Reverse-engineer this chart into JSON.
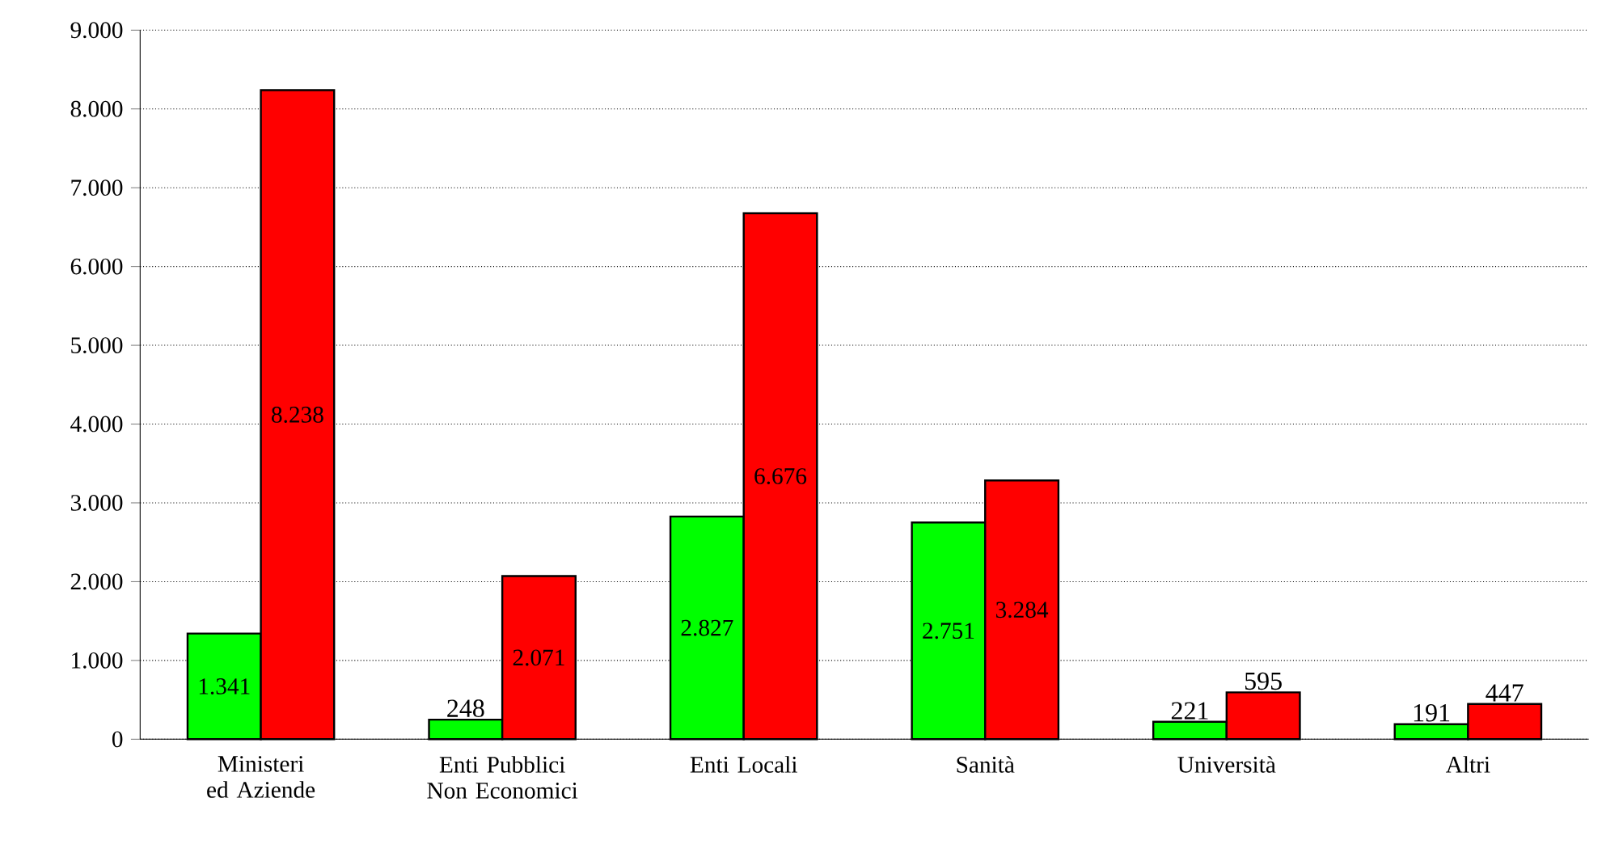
{
  "chart_data": {
    "type": "bar",
    "categories": [
      "Ministeri ed Aziende",
      "Enti Pubblici Non Economici",
      "Enti Locali",
      "Sanità",
      "Università",
      "Altri"
    ],
    "series": [
      {
        "color": "#00ff00",
        "values": [
          1341,
          248,
          2827,
          2751,
          221,
          191
        ],
        "value_labels": [
          "1.341",
          "248",
          "2.827",
          "2.751",
          "221",
          "191"
        ]
      },
      {
        "color": "#ff0000",
        "values": [
          8238,
          2071,
          6676,
          3284,
          595,
          447
        ],
        "value_labels": [
          "8.238",
          "2.071",
          "6.676",
          "3.284",
          "595",
          "447"
        ]
      }
    ],
    "ylim": [
      0,
      9000
    ],
    "yticks": [
      {
        "value": 0,
        "label": "0"
      },
      {
        "value": 1000,
        "label": "1.000"
      },
      {
        "value": 2000,
        "label": "2.000"
      },
      {
        "value": 3000,
        "label": "3.000"
      },
      {
        "value": 4000,
        "label": "4.000"
      },
      {
        "value": 5000,
        "label": "5.000"
      },
      {
        "value": 6000,
        "label": "6.000"
      },
      {
        "value": 7000,
        "label": "7.000"
      },
      {
        "value": 8000,
        "label": "8.000"
      },
      {
        "value": 9000,
        "label": "9.000"
      }
    ],
    "grid": "y"
  }
}
